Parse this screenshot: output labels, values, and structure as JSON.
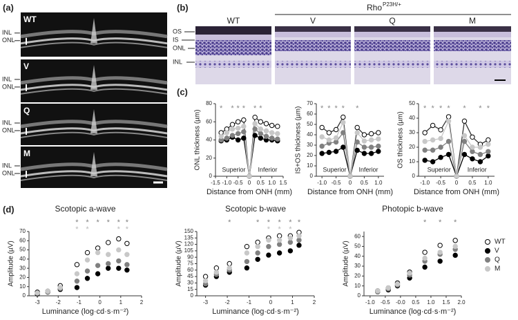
{
  "panel_labels": [
    "(a)",
    "(b)",
    "(c)",
    "(d)"
  ],
  "oct": {
    "images": [
      {
        "label": "WT",
        "layers": [
          "INL",
          "ONL"
        ]
      },
      {
        "label": "V",
        "layers": [
          "INL",
          "ONL"
        ]
      },
      {
        "label": "Q",
        "layers": [
          "INL",
          "ONL"
        ]
      },
      {
        "label": "M",
        "layers": [
          "INL",
          "ONL"
        ]
      }
    ]
  },
  "histology": {
    "group_label": "Rho",
    "group_label_sup": "P23H/+",
    "columns": [
      "WT",
      "V",
      "Q",
      "M"
    ],
    "layers": [
      "OS",
      "IS",
      "ONL",
      "INL"
    ]
  },
  "chart_data": [
    {
      "type": "line",
      "y_label": "ONL thickness (µm)",
      "x_label": "Distance from ONH (mm)",
      "x": [
        -1.25,
        -1.0,
        -0.75,
        -0.5,
        -0.25,
        0,
        0.25,
        0.5,
        0.75,
        1.0,
        1.25
      ],
      "xlim": [
        -1.5,
        1.5
      ],
      "xticks": [
        -1.5,
        {
          "value": -1,
          "label": "-1.0"
        },
        -0.5,
        0,
        0.5,
        {
          "value": 1,
          "label": "1.0"
        },
        1.5
      ],
      "ylim": [
        0,
        80
      ],
      "yticks": [
        0,
        20,
        40,
        60,
        80
      ],
      "annotations": [
        "Superior",
        "Inferior"
      ],
      "significance": [
        {
          "label": "*",
          "color": "#888888",
          "x": [
            -1.25,
            -0.75,
            -0.5,
            -0.25,
            0.25,
            0.5
          ]
        }
      ],
      "series": [
        {
          "name": "WT",
          "color": "#ffffff",
          "values": [
            48,
            52,
            57,
            60,
            62,
            0,
            65,
            60,
            58,
            56,
            55
          ]
        },
        {
          "name": "V",
          "color": "#000000",
          "values": [
            39,
            40,
            43,
            40,
            42,
            0,
            45,
            42,
            40,
            40,
            39
          ]
        },
        {
          "name": "Q",
          "color": "#808080",
          "values": [
            40,
            42,
            45,
            47,
            49,
            0,
            52,
            47,
            44,
            42,
            41
          ]
        },
        {
          "name": "M",
          "color": "#c8c8c8",
          "values": [
            44,
            48,
            52,
            53,
            55,
            0,
            58,
            52,
            50,
            48,
            47
          ]
        }
      ]
    },
    {
      "type": "line",
      "y_label": "IS+OS thickness (µm)",
      "x_label": "Distance from ONH (mm)",
      "x": [
        -1.0,
        -0.75,
        -0.5,
        -0.25,
        0,
        0.25,
        0.5,
        0.75,
        1.0
      ],
      "xlim": [
        -1.2,
        1.2
      ],
      "xticks": [
        {
          "value": -1,
          "label": "-1.0"
        },
        -0.5,
        0,
        0.5,
        {
          "value": 1,
          "label": "1.0"
        }
      ],
      "ylim": [
        0,
        70
      ],
      "yticks": [
        0,
        10,
        20,
        30,
        40,
        50,
        60,
        70
      ],
      "annotations": [
        "Superior",
        "Inferior"
      ],
      "significance": [
        {
          "label": "*",
          "color": "#888888",
          "x": [
            -1.0,
            -0.75,
            -0.5,
            -0.25,
            0.25
          ]
        }
      ],
      "series": [
        {
          "name": "WT",
          "color": "#ffffff",
          "values": [
            47,
            42,
            45,
            57,
            0,
            47,
            40,
            41,
            42
          ]
        },
        {
          "name": "V",
          "color": "#000000",
          "values": [
            22,
            23,
            24,
            28,
            0,
            25,
            22,
            22,
            24
          ]
        },
        {
          "name": "Q",
          "color": "#808080",
          "values": [
            29,
            32,
            33,
            42,
            0,
            33,
            28,
            28,
            29
          ]
        },
        {
          "name": "M",
          "color": "#c8c8c8",
          "values": [
            38,
            35,
            37,
            52,
            0,
            42,
            34,
            35,
            36
          ]
        }
      ]
    },
    {
      "type": "line",
      "y_label": "OS thickness (µm)",
      "x_label": "Distance from ONH (mm)",
      "x": [
        -1.0,
        -0.75,
        -0.5,
        -0.25,
        0,
        0.25,
        0.5,
        0.75,
        1.0
      ],
      "xlim": [
        -1.2,
        1.2
      ],
      "xticks": [
        {
          "value": -1,
          "label": "-1.0"
        },
        -0.5,
        0,
        0.5,
        {
          "value": 1,
          "label": "1.0"
        }
      ],
      "ylim": [
        0,
        50
      ],
      "yticks": [
        0,
        10,
        20,
        30,
        40,
        50
      ],
      "annotations": [
        "Superior",
        "Inferior"
      ],
      "significance": [
        {
          "label": "*",
          "color": "#888888",
          "x": [
            -1.0,
            -0.75,
            -0.5,
            -0.25,
            0.25,
            0.75,
            1.0
          ]
        }
      ],
      "series": [
        {
          "name": "WT",
          "color": "#ffffff",
          "values": [
            30,
            35,
            32,
            41,
            0,
            38,
            27,
            22,
            25
          ]
        },
        {
          "name": "V",
          "color": "#000000",
          "values": [
            11,
            10,
            13,
            15,
            0,
            15,
            12,
            10,
            14
          ]
        },
        {
          "name": "Q",
          "color": "#808080",
          "values": [
            18,
            18,
            20,
            24,
            0,
            24,
            17,
            15,
            17
          ]
        },
        {
          "name": "M",
          "color": "#c8c8c8",
          "values": [
            24,
            25,
            26,
            38,
            0,
            28,
            20,
            20,
            22
          ]
        }
      ]
    },
    {
      "type": "scatter",
      "title": "Scotopic a-wave",
      "y_label": "Amplitude (µV)",
      "x_label": "Luminance (log·cd·s·m⁻²)",
      "x": [
        -3.0,
        -2.5,
        -1.9,
        -1.1,
        -0.6,
        -0.1,
        0.4,
        0.9,
        1.3
      ],
      "xlim": [
        -3.4,
        2
      ],
      "xticks": [
        -3,
        -2,
        -1,
        0,
        1,
        2
      ],
      "ylim": [
        0,
        70
      ],
      "yticks": [
        0,
        10,
        20,
        30,
        40,
        50,
        60,
        70
      ],
      "significance": [
        {
          "label": "*",
          "color": "#808080",
          "x": [
            -1.1,
            -0.6,
            -0.1,
            0.4,
            0.9,
            1.3
          ]
        },
        {
          "label": "*",
          "color": "#b8b8b8",
          "x": [
            -1.1,
            -0.6,
            0.9,
            1.3
          ]
        }
      ],
      "series": [
        {
          "name": "WT",
          "color": "#ffffff",
          "values": [
            4,
            5,
            11,
            34,
            47,
            52,
            58,
            62,
            57
          ]
        },
        {
          "name": "V",
          "color": "#000000",
          "values": [
            2,
            4,
            7,
            9,
            19,
            24,
            30,
            30,
            28
          ]
        },
        {
          "name": "Q",
          "color": "#808080",
          "values": [
            3,
            4,
            8,
            16,
            27,
            33,
            35,
            38,
            34
          ]
        },
        {
          "name": "M",
          "color": "#c8c8c8",
          "values": [
            3,
            5,
            9,
            24,
            39,
            47,
            45,
            50,
            45
          ]
        }
      ]
    },
    {
      "type": "scatter",
      "title": "Scotopic b-wave",
      "y_label": "Amplitude (µV)",
      "x_label": "Luminance (log·cd·s·m⁻²)",
      "x": [
        -3.0,
        -2.5,
        -1.9,
        -1.1,
        -0.6,
        -0.1,
        0.4,
        0.9,
        1.3
      ],
      "xlim": [
        -3.4,
        2
      ],
      "xticks": [
        -3,
        -2,
        -1,
        0,
        1,
        2
      ],
      "ylim": [
        0,
        150
      ],
      "yticks": [
        0,
        15,
        30,
        45,
        60,
        75,
        90,
        105,
        120,
        135,
        150
      ],
      "significance": [
        {
          "label": "*",
          "color": "#808080",
          "x": [
            -1.9,
            -0.6,
            -0.1,
            0.4,
            0.9,
            1.3
          ]
        },
        {
          "label": "*",
          "color": "#b8b8b8",
          "x": [
            -0.1,
            0.4,
            0.9
          ]
        }
      ],
      "series": [
        {
          "name": "WT",
          "color": "#ffffff",
          "values": [
            45,
            65,
            75,
            115,
            125,
            135,
            140,
            140,
            148
          ]
        },
        {
          "name": "V",
          "color": "#000000",
          "values": [
            25,
            45,
            55,
            65,
            85,
            95,
            100,
            105,
            118
          ]
        },
        {
          "name": "Q",
          "color": "#808080",
          "values": [
            28,
            50,
            60,
            80,
            100,
            115,
            120,
            125,
            130
          ]
        },
        {
          "name": "M",
          "color": "#c8c8c8",
          "values": [
            35,
            55,
            65,
            100,
            115,
            130,
            130,
            135,
            140
          ]
        }
      ]
    },
    {
      "type": "scatter",
      "title": "Photopic b-wave",
      "y_label": "Amplitude (µV)",
      "x_label": "Luminance (log·cd·s·m⁻²)",
      "x": [
        -0.75,
        -0.4,
        -0.1,
        0.3,
        0.8,
        1.3,
        1.8
      ],
      "xlim": [
        -1.2,
        2.0
      ],
      "xticks": [
        {
          "value": -1,
          "label": "-1.0"
        },
        -0.5,
        {
          "value": 0,
          "label": "-0.0"
        },
        0.5,
        {
          "value": 1,
          "label": "1.0"
        },
        1.5,
        {
          "value": 2,
          "label": "2.0"
        }
      ],
      "ylim": [
        0,
        65
      ],
      "yticks": [
        0,
        10,
        20,
        30,
        40,
        50,
        60
      ],
      "legend": "right",
      "significance": [
        {
          "label": "*",
          "color": "#808080",
          "x": [
            0.8,
            1.3,
            1.8
          ]
        }
      ],
      "series": [
        {
          "name": "WT",
          "color": "#ffffff",
          "values": [
            5,
            8,
            13,
            24,
            44,
            51,
            56
          ]
        },
        {
          "name": "V",
          "color": "#000000",
          "values": [
            4,
            6,
            10,
            18,
            29,
            35,
            41
          ]
        },
        {
          "name": "Q",
          "color": "#808080",
          "values": [
            4,
            7,
            11,
            21,
            35,
            42,
            47
          ]
        },
        {
          "name": "M",
          "color": "#c8c8c8",
          "values": [
            5,
            8,
            12,
            23,
            38,
            44,
            50
          ]
        }
      ]
    }
  ]
}
